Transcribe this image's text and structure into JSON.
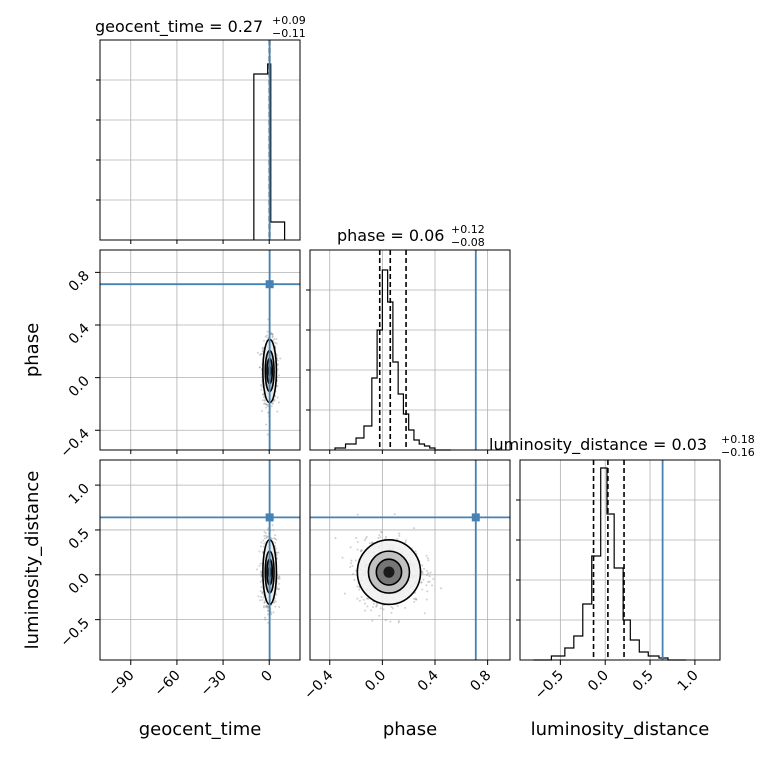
{
  "chart_data": {
    "type": "corner",
    "parameters": [
      "geocent_time",
      "phase",
      "luminosity_distance"
    ],
    "titles": [
      {
        "name": "geocent_time",
        "median": "0.27",
        "plus": "+0.09",
        "minus": "−0.11"
      },
      {
        "name": "phase",
        "median": "0.06",
        "plus": "+0.12",
        "minus": "−0.08"
      },
      {
        "name": "luminosity_distance",
        "median": "0.03",
        "plus": "+0.18",
        "minus": "−0.16"
      }
    ],
    "axis_labels": {
      "x": [
        "geocent_time",
        "phase",
        "luminosity_distance"
      ],
      "y": [
        "phase",
        "luminosity_distance"
      ]
    },
    "ranges": {
      "geocent_time": [
        -110,
        20
      ],
      "phase": [
        -0.55,
        0.97
      ],
      "luminosity_distance": [
        -0.95,
        1.28
      ]
    },
    "ticks": {
      "geocent_time": [
        {
          "v": -90,
          "t": "−90"
        },
        {
          "v": -60,
          "t": "−60"
        },
        {
          "v": -30,
          "t": "−30"
        },
        {
          "v": 0,
          "t": "0"
        }
      ],
      "phase": [
        {
          "v": -0.4,
          "t": "−0.4"
        },
        {
          "v": 0.0,
          "t": "0.0"
        },
        {
          "v": 0.4,
          "t": "0.4"
        },
        {
          "v": 0.8,
          "t": "0.8"
        }
      ],
      "luminosity_distance": [
        {
          "v": -0.5,
          "t": "−0.5"
        },
        {
          "v": 0.0,
          "t": "0.0"
        },
        {
          "v": 0.5,
          "t": "0.5"
        },
        {
          "v": 1.0,
          "t": "1.0"
        }
      ],
      "phase_y": [
        {
          "v": -0.4,
          "t": "−0.4"
        },
        {
          "v": 0.0,
          "t": "0.0"
        },
        {
          "v": 0.4,
          "t": "0.4"
        },
        {
          "v": 0.8,
          "t": "0.8"
        }
      ],
      "luminosity_distance_y": [
        {
          "v": -0.5,
          "t": "−0.5"
        },
        {
          "v": 0.0,
          "t": "0.0"
        },
        {
          "v": 0.5,
          "t": "0.5"
        },
        {
          "v": 1.0,
          "t": "1.0"
        }
      ]
    },
    "injection": {
      "geocent_time": 0.27,
      "phase": 0.71,
      "luminosity_distance": 0.64
    },
    "histograms": {
      "geocent_time": {
        "bins": [
          [
            -10,
            -1
          ],
          [
            -1,
            1
          ],
          [
            1,
            10
          ]
        ],
        "heights": [
          0.83,
          0.88,
          0.09
        ],
        "quantiles": [
          0.16,
          0.27,
          0.36
        ]
      },
      "phase": {
        "bins": [
          [
            -0.36,
            -0.28
          ],
          [
            -0.28,
            -0.2
          ],
          [
            -0.2,
            -0.14
          ],
          [
            -0.14,
            -0.08
          ],
          [
            -0.08,
            -0.04
          ],
          [
            -0.04,
            0.0
          ],
          [
            0.0,
            0.04
          ],
          [
            0.04,
            0.08
          ],
          [
            0.08,
            0.12
          ],
          [
            0.12,
            0.16
          ],
          [
            0.16,
            0.2
          ],
          [
            0.2,
            0.24
          ],
          [
            0.24,
            0.28
          ],
          [
            0.28,
            0.32
          ],
          [
            0.32,
            0.36
          ],
          [
            0.36,
            0.4
          ],
          [
            0.4,
            0.46
          ],
          [
            0.46,
            0.52
          ]
        ],
        "heights": [
          0.01,
          0.03,
          0.06,
          0.12,
          0.36,
          0.6,
          0.9,
          0.74,
          0.44,
          0.28,
          0.18,
          0.1,
          0.05,
          0.03,
          0.02,
          0.01,
          0.0,
          0.0
        ],
        "quantiles": [
          -0.02,
          0.06,
          0.18
        ]
      },
      "luminosity_distance": {
        "bins": [
          [
            -0.8,
            -0.6
          ],
          [
            -0.6,
            -0.45
          ],
          [
            -0.45,
            -0.35
          ],
          [
            -0.35,
            -0.25
          ],
          [
            -0.25,
            -0.15
          ],
          [
            -0.15,
            -0.05
          ],
          [
            -0.05,
            0.02
          ],
          [
            0.02,
            0.1
          ],
          [
            0.1,
            0.2
          ],
          [
            0.2,
            0.28
          ],
          [
            0.28,
            0.38
          ],
          [
            0.38,
            0.48
          ],
          [
            0.48,
            0.6
          ],
          [
            0.6,
            0.7
          ],
          [
            0.7,
            0.9
          ]
        ],
        "heights": [
          0.0,
          0.02,
          0.06,
          0.12,
          0.28,
          0.52,
          0.96,
          0.73,
          0.46,
          0.2,
          0.1,
          0.04,
          0.02,
          0.01,
          0.0
        ],
        "quantiles": [
          -0.13,
          0.03,
          0.21
        ]
      }
    },
    "posterior_center": {
      "geocent_time": 0.27,
      "phase": 0.05,
      "luminosity_distance": 0.03
    },
    "posterior_spread": {
      "geocent_time": 2.2,
      "phase": 0.12,
      "luminosity_distance": 0.18
    },
    "colors": {
      "hist": "#000000",
      "truth": "#4682b4",
      "grid": "#b0b0b0",
      "points": "#777777"
    }
  }
}
